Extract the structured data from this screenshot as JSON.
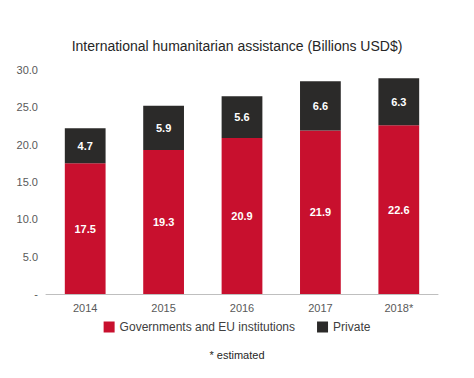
{
  "chart_data": {
    "type": "bar",
    "title": "International humanitarian assistance (Billions USD$)",
    "categories": [
      "2014",
      "2015",
      "2016",
      "2017",
      "2018*"
    ],
    "series": [
      {
        "name": "Governments and EU institutions",
        "color": "#c8102e",
        "values": [
          17.5,
          19.3,
          20.9,
          21.9,
          22.6
        ]
      },
      {
        "name": "Private",
        "color": "#2b2a29",
        "values": [
          4.7,
          5.9,
          5.6,
          6.6,
          6.3
        ]
      }
    ],
    "ylim": [
      0,
      30
    ],
    "yticks": [
      {
        "value": 0,
        "label": "-"
      },
      {
        "value": 5,
        "label": "5.0"
      },
      {
        "value": 10,
        "label": "10.0"
      },
      {
        "value": 15,
        "label": "15.0"
      },
      {
        "value": 20,
        "label": "20.0"
      },
      {
        "value": 25,
        "label": "25.0"
      },
      {
        "value": 30,
        "label": "30.0"
      }
    ],
    "stacked": true,
    "data_labels": true,
    "grid": false,
    "legend": "bottom",
    "annotations": [
      "* estimated"
    ]
  }
}
